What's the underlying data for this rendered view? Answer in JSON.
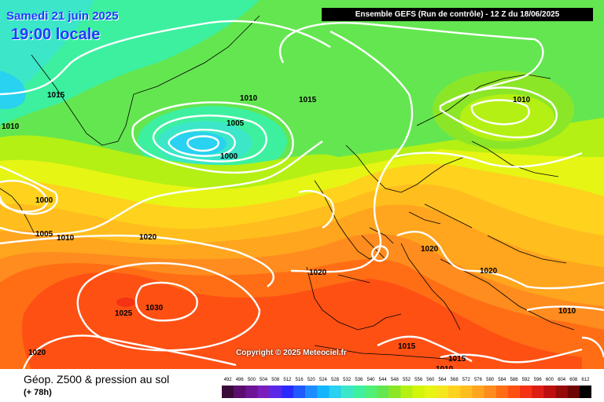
{
  "header": {
    "date": "Samedi 21 juin 2025",
    "local_time": "19:00 locale",
    "run_info": "Ensemble GEFS  (Run de contrôle)  -  12 Z du 18/06/2025"
  },
  "copyright": "Copyright © 2025 Meteociel.fr",
  "footer": {
    "field_title": "Géop. Z500 & pression au sol",
    "lead_time": "(+ 78h)"
  },
  "legend": {
    "levels": [
      "492",
      "496",
      "500",
      "504",
      "508",
      "512",
      "516",
      "520",
      "524",
      "528",
      "532",
      "536",
      "540",
      "544",
      "548",
      "552",
      "556",
      "560",
      "564",
      "568",
      "572",
      "576",
      "580",
      "584",
      "588",
      "592",
      "596",
      "600",
      "604",
      "608",
      "612"
    ],
    "colors": [
      "#3b0a3b",
      "#5a0f6e",
      "#6e1496",
      "#7a1ebe",
      "#5a28e6",
      "#2a2aff",
      "#1e5aff",
      "#1e8cff",
      "#14b4ff",
      "#28d2f0",
      "#3ce6c8",
      "#3cf0a0",
      "#50f078",
      "#64e650",
      "#8ce628",
      "#b4f014",
      "#d2f50a",
      "#e6f514",
      "#f5e61e",
      "#ffd21e",
      "#ffbe1e",
      "#ffa51e",
      "#ff8c1e",
      "#ff6e14",
      "#ff5014",
      "#f53214",
      "#dc1e14",
      "#be0f0f",
      "#960a0a",
      "#6e0505",
      "#000000"
    ]
  },
  "isobars": [
    {
      "label": "1015"
    },
    {
      "label": "1010"
    },
    {
      "label": "1010"
    },
    {
      "label": "1005"
    },
    {
      "label": "1000"
    },
    {
      "label": "1015"
    },
    {
      "label": "1010"
    },
    {
      "label": "1000"
    },
    {
      "label": "1005"
    },
    {
      "label": "1010"
    },
    {
      "label": "1020"
    },
    {
      "label": "1020"
    },
    {
      "label": "1020"
    },
    {
      "label": "1020"
    },
    {
      "label": "1030"
    },
    {
      "label": "1025"
    },
    {
      "label": "1020"
    },
    {
      "label": "1015"
    },
    {
      "label": "1015"
    },
    {
      "label": "1010"
    },
    {
      "label": "1010"
    }
  ]
}
